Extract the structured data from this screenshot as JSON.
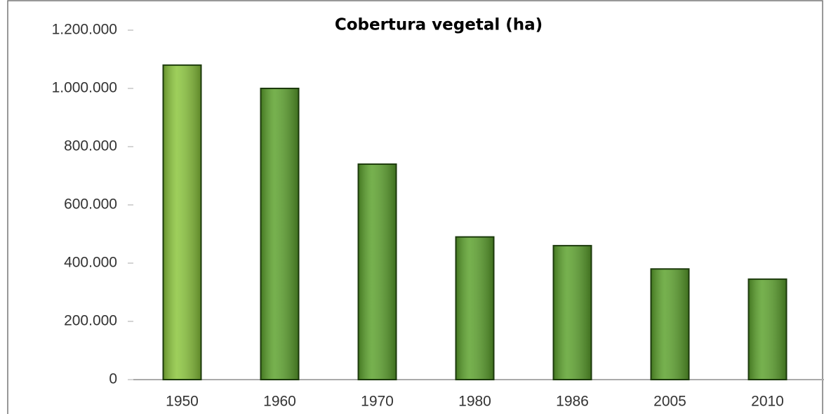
{
  "chart_data": {
    "type": "bar",
    "title": "Cobertura vegetal (ha)",
    "categories": [
      "1950",
      "1960",
      "1970",
      "1980",
      "1986",
      "2005",
      "2010"
    ],
    "values": [
      1080000,
      1000000,
      740000,
      490000,
      460000,
      380000,
      345000
    ],
    "colors": [
      "#8cc63e",
      "#5ea32f",
      "#5ea32f",
      "#5ea32f",
      "#5ea32f",
      "#5ea32f",
      "#5ea32f"
    ],
    "ylim": [
      0,
      1200000
    ],
    "yticks": [
      0,
      {
        "value": 200000,
        "label": "200.000"
      },
      {
        "value": 400000,
        "label": "400.000"
      },
      {
        "value": 600000,
        "label": "600.000"
      },
      {
        "value": 800000,
        "label": "800.000"
      },
      {
        "value": 1000000,
        "label": "1.000.000"
      },
      {
        "value": 1200000,
        "label": "1.200.000"
      }
    ],
    "grid": false
  }
}
